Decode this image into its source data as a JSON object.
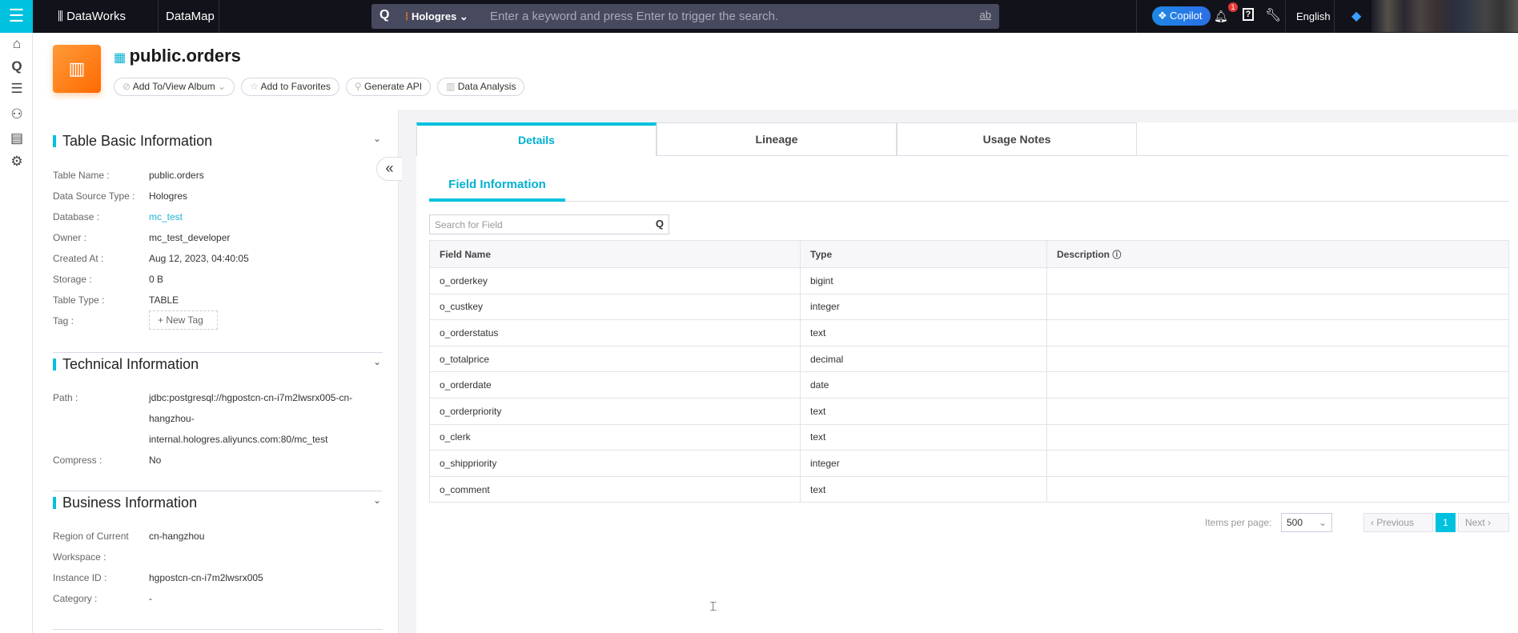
{
  "topbar": {
    "brand": "DataWorks",
    "module": "DataMap",
    "search_source": "Hologres",
    "search_placeholder": "Enter a keyword and press Enter to trigger the search.",
    "copilot": "Copilot",
    "notification_count": "1",
    "language": "English"
  },
  "header": {
    "title": "public.orders",
    "buttons": [
      "Add To/View Album",
      "Add to Favorites",
      "Generate API",
      "Data Analysis"
    ]
  },
  "basic": {
    "title": "Table Basic Information",
    "rows": [
      {
        "label": "Table Name :",
        "value": "public.orders"
      },
      {
        "label": "Data Source Type :",
        "value": "Hologres"
      },
      {
        "label": "Database :",
        "value": "mc_test"
      },
      {
        "label": "Owner :",
        "value": "mc_test_developer"
      },
      {
        "label": "Created At :",
        "value": "Aug 12, 2023, 04:40:05"
      },
      {
        "label": "Storage :",
        "value": "0 B"
      },
      {
        "label": "Table Type :",
        "value": "TABLE"
      },
      {
        "label": "Tag :",
        "value": "New Tag"
      }
    ]
  },
  "technical": {
    "title": "Technical Information",
    "path_label": "Path :",
    "path_lines": [
      "jdbc:postgresql://hgpostcn-cn-i7m2lwsrx005-cn-",
      "hangzhou-",
      "internal.hologres.aliyuncs.com:80/mc_test"
    ],
    "compress_label": "Compress :",
    "compress_value": "No"
  },
  "business": {
    "title": "Business Information",
    "region_label_1": "Region of Current",
    "region_label_2": "Workspace :",
    "region_value": "cn-hangzhou",
    "instance_label": "Instance ID :",
    "instance_value": "hgpostcn-cn-i7m2lwsrx005",
    "category_label": "Category :",
    "category_value": "-"
  },
  "tabs": [
    "Details",
    "Lineage",
    "Usage Notes"
  ],
  "subtab": "Field Information",
  "field_search_placeholder": "Search for Field",
  "table": {
    "columns": [
      "Field Name",
      "Type",
      "Description"
    ],
    "rows": [
      [
        "o_orderkey",
        "bigint",
        ""
      ],
      [
        "o_custkey",
        "integer",
        ""
      ],
      [
        "o_orderstatus",
        "text",
        ""
      ],
      [
        "o_totalprice",
        "decimal",
        ""
      ],
      [
        "o_orderdate",
        "date",
        ""
      ],
      [
        "o_orderpriority",
        "text",
        ""
      ],
      [
        "o_clerk",
        "text",
        ""
      ],
      [
        "o_shippriority",
        "integer",
        ""
      ],
      [
        "o_comment",
        "text",
        ""
      ]
    ]
  },
  "pagination": {
    "items_per_page_label": "Items per page:",
    "items_per_page": "500",
    "previous": "Previous",
    "current_page": "1",
    "next": "Next"
  },
  "colors": {
    "accent": "#00c1de",
    "topbar": "#12131a",
    "logo": "#ff7a1a"
  }
}
